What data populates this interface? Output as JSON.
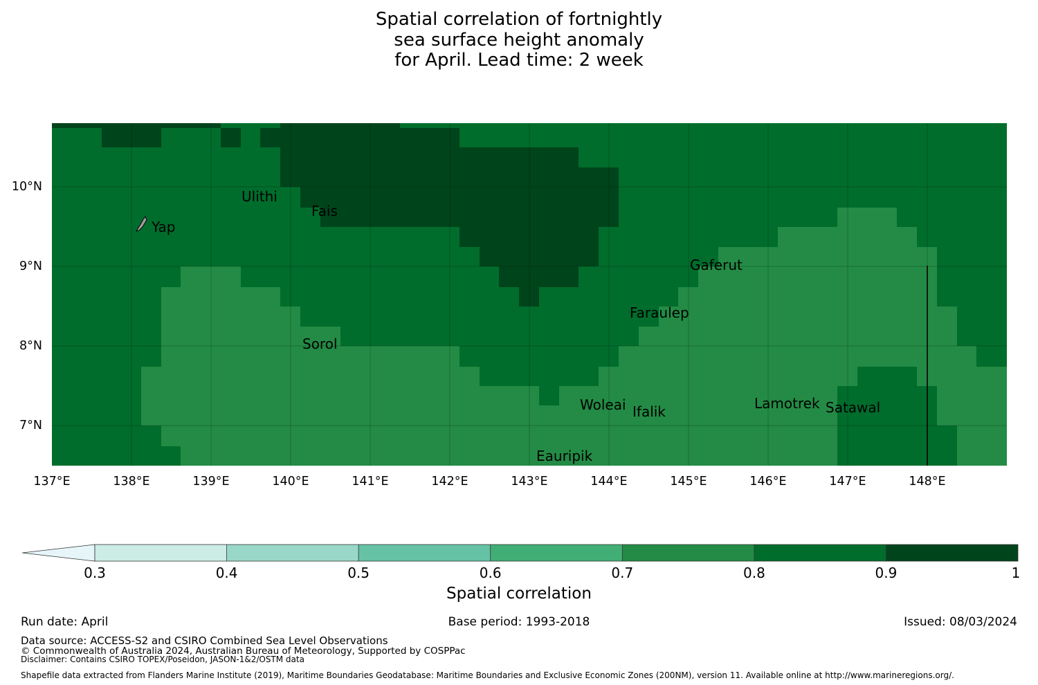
{
  "title": {
    "line1": "Spatial correlation of fortnightly",
    "line2": "sea surface height anomaly",
    "line3": "for April. Lead time: 2 week"
  },
  "map": {
    "lon_ticks": [
      "137°E",
      "138°E",
      "139°E",
      "140°E",
      "141°E",
      "142°E",
      "143°E",
      "144°E",
      "145°E",
      "146°E",
      "147°E",
      "148°E"
    ],
    "lat_ticks": [
      "10°N",
      "9°N",
      "8°N",
      "7°N"
    ],
    "places": [
      {
        "name": "Ulithi"
      },
      {
        "name": "Fais"
      },
      {
        "name": "Yap"
      },
      {
        "name": "Gaferut"
      },
      {
        "name": "Faraulep"
      },
      {
        "name": "Sorol"
      },
      {
        "name": "Woleai"
      },
      {
        "name": "Ifalik"
      },
      {
        "name": "Lamotrek"
      },
      {
        "name": "Satawal"
      },
      {
        "name": "Eauripik"
      }
    ]
  },
  "colorbar": {
    "label": "Spatial correlation",
    "ticks": [
      "0.3",
      "0.4",
      "0.5",
      "0.6",
      "0.7",
      "0.8",
      "0.9",
      "1"
    ],
    "colors": [
      "#e5f5f9",
      "#ccece6",
      "#99d8c9",
      "#66c2a4",
      "#41ae76",
      "#238b45",
      "#006d2c",
      "#00441b"
    ]
  },
  "footer": {
    "run_date": "Run date: April",
    "base_period": "Base period: 1993-2018",
    "issued": "Issued: 08/03/2024",
    "data_source": "Data source: ACCESS-S2 and CSIRO Combined Sea Level Observations",
    "copyright": "© Commonwealth of Australia 2024, Australian Bureau of Meteorology, Supported by COSPPac",
    "disclaimer": "Disclaimer: Contains CSIRO TOPEX/Poseidon, JASON-1&2/OSTM data",
    "shapefile": "Shapefile data extracted from Flanders Marine Institute (2019), Maritime Boundaries Geodatabase: Maritime Boundaries and Exclusive Economic Zones (200NM), version 11. Available online at http://www.marineregions.org/."
  }
}
